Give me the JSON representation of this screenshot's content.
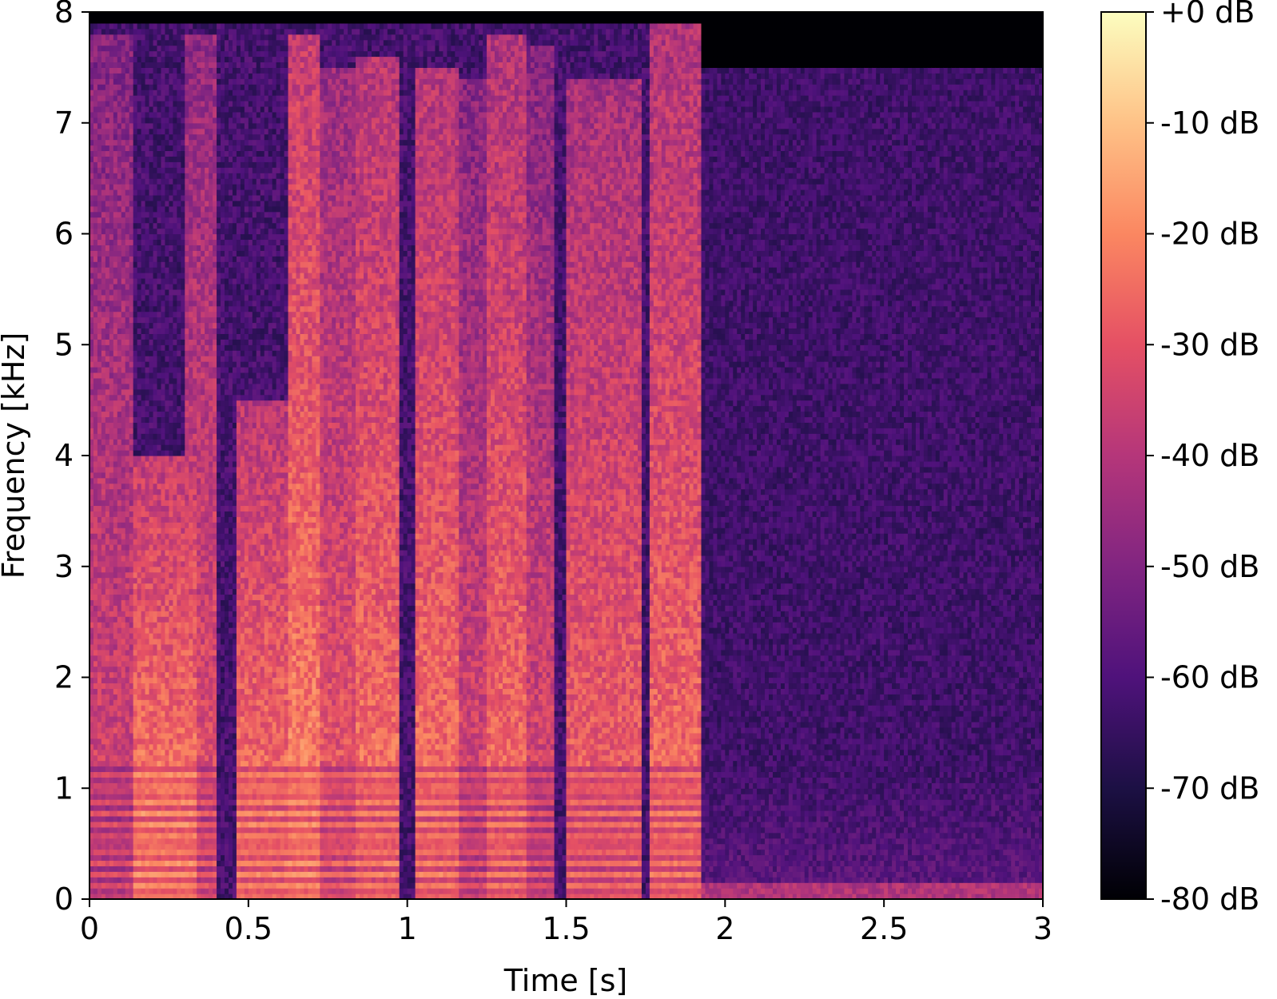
{
  "chart_data": {
    "type": "heatmap",
    "title": "",
    "xlabel": "Time [s]",
    "ylabel": "Frequency [kHz]",
    "xlim": [
      0,
      3
    ],
    "ylim": [
      0,
      8
    ],
    "x_ticks": [
      "0",
      "0.5",
      "1",
      "1.5",
      "2",
      "2.5",
      "3"
    ],
    "x_tick_values": [
      0,
      0.5,
      1,
      1.5,
      2,
      2.5,
      3
    ],
    "y_ticks": [
      "0",
      "1",
      "2",
      "3",
      "4",
      "5",
      "6",
      "7",
      "8"
    ],
    "y_tick_values": [
      0,
      1,
      2,
      3,
      4,
      5,
      6,
      7,
      8
    ],
    "colormap": "magma",
    "colorbar": {
      "range_db": [
        -80,
        0
      ],
      "ticks": [
        "+0 dB",
        "-10 dB",
        "-20 dB",
        "-30 dB",
        "-40 dB",
        "-50 dB",
        "-60 dB",
        "-70 dB",
        "-80 dB"
      ],
      "tick_values": [
        0,
        -10,
        -20,
        -30,
        -40,
        -50,
        -60,
        -70,
        -80
      ]
    },
    "speech_segments": [
      {
        "t_start": 0.0,
        "t_end": 0.14,
        "f_max": 7.8,
        "peak_db": -25
      },
      {
        "t_start": 0.14,
        "t_end": 0.34,
        "f_max": 4.0,
        "peak_db": -12
      },
      {
        "t_start": 0.3,
        "t_end": 0.4,
        "f_max": 7.8,
        "peak_db": -22
      },
      {
        "t_start": 0.46,
        "t_end": 0.64,
        "f_max": 4.5,
        "peak_db": -14
      },
      {
        "t_start": 0.63,
        "t_end": 0.73,
        "f_max": 7.8,
        "peak_db": -12
      },
      {
        "t_start": 0.73,
        "t_end": 0.84,
        "f_max": 7.5,
        "peak_db": -20
      },
      {
        "t_start": 0.84,
        "t_end": 0.98,
        "f_max": 7.6,
        "peak_db": -15
      },
      {
        "t_start": 1.02,
        "t_end": 1.16,
        "f_max": 7.5,
        "peak_db": -15
      },
      {
        "t_start": 1.16,
        "t_end": 1.25,
        "f_max": 7.4,
        "peak_db": -24
      },
      {
        "t_start": 1.25,
        "t_end": 1.38,
        "f_max": 7.8,
        "peak_db": -16
      },
      {
        "t_start": 1.38,
        "t_end": 1.46,
        "f_max": 7.7,
        "peak_db": -24
      },
      {
        "t_start": 1.5,
        "t_end": 1.74,
        "f_max": 7.4,
        "peak_db": -18
      },
      {
        "t_start": 1.76,
        "t_end": 1.93,
        "f_max": 7.9,
        "peak_db": -16
      }
    ],
    "noise_floor_db": -62,
    "silence_after_s": 1.93
  }
}
